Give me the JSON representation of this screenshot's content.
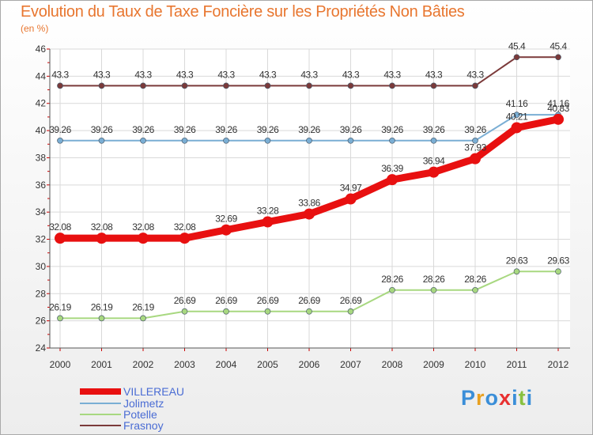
{
  "title": "Evolution du Taux de Taxe Foncière sur les Propriétés Non Bâties",
  "unit": "(en %)",
  "logo": {
    "text": "Proxiti",
    "colors": [
      "#3a8ed8",
      "#e8a020",
      "#3a8ed8",
      "#e83030",
      "#3a8ed8",
      "#88c040",
      "#3a8ed8"
    ]
  },
  "chart_data": {
    "type": "line",
    "title": "Evolution du Taux de Taxe Foncière sur les Propriétés Non Bâties",
    "ylabel": "(en %)",
    "xlabel": "",
    "x": [
      "2000",
      "2001",
      "2002",
      "2003",
      "2004",
      "2005",
      "2006",
      "2007",
      "2008",
      "2009",
      "2010",
      "2011",
      "2012"
    ],
    "ylim": [
      24,
      46
    ],
    "yticks": [
      24,
      26,
      28,
      30,
      32,
      34,
      36,
      38,
      40,
      42,
      44,
      46
    ],
    "grid": true,
    "legend_position": "bottom-left",
    "series": [
      {
        "name": "Frasnoy",
        "color": "#7b3a3a",
        "values": [
          43.3,
          43.3,
          43.3,
          43.3,
          43.3,
          43.3,
          43.3,
          43.3,
          43.3,
          43.3,
          43.3,
          45.4,
          45.4
        ],
        "labels": [
          "43.3",
          "43.3",
          "43.3",
          "43.3",
          "43.3",
          "43.3",
          "43.3",
          "43.3",
          "43.3",
          "43.3",
          "43.3",
          "45.4",
          "45.4"
        ]
      },
      {
        "name": "Jolimetz",
        "color": "#7aaed4",
        "values": [
          39.26,
          39.26,
          39.26,
          39.26,
          39.26,
          39.26,
          39.26,
          39.26,
          39.26,
          39.26,
          39.26,
          41.16,
          41.16
        ],
        "labels": [
          "39.26",
          "39.26",
          "39.26",
          "39.26",
          "39.26",
          "39.26",
          "39.26",
          "39.26",
          "39.26",
          "39.26",
          "39.26",
          "41.16",
          "41.16"
        ]
      },
      {
        "name": "Potelle",
        "color": "#a8d880",
        "values": [
          26.19,
          26.19,
          26.19,
          26.69,
          26.69,
          26.69,
          26.69,
          26.69,
          28.26,
          28.26,
          28.26,
          29.63,
          29.63
        ],
        "labels": [
          "26.19",
          "26.19",
          "26.19",
          "26.69",
          "26.69",
          "26.69",
          "26.69",
          "26.69",
          "28.26",
          "28.26",
          "28.26",
          "29.63",
          "29.63"
        ]
      },
      {
        "name": "VILLEREAU",
        "color": "#e81010",
        "values": [
          32.08,
          32.08,
          32.08,
          32.08,
          32.69,
          33.28,
          33.86,
          34.97,
          36.39,
          36.94,
          37.93,
          40.21,
          40.83
        ],
        "labels": [
          "32.08",
          "32.08",
          "32.08",
          "32.08",
          "32.69",
          "33.28",
          "33.86",
          "34.97",
          "36.39",
          "36.94",
          "37.93",
          "40.21",
          "40.83"
        ]
      }
    ],
    "legend": [
      "VILLEREAU",
      "Jolimetz",
      "Potelle",
      "Frasnoy"
    ]
  }
}
